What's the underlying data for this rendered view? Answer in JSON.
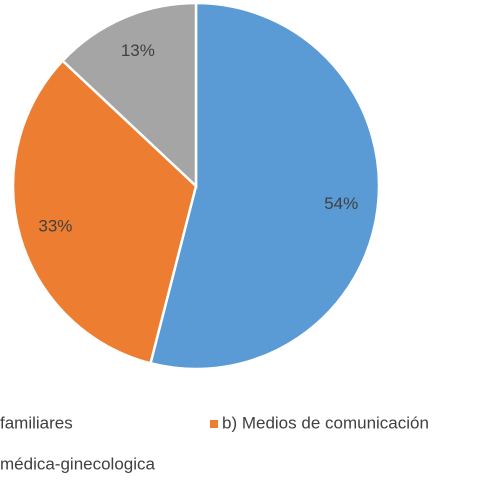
{
  "chart_data": {
    "type": "pie",
    "categories": [
      "familiares",
      "b) Medios de comunicación",
      "médica-ginecologica"
    ],
    "values": [
      54,
      33,
      13
    ],
    "value_labels": [
      "54%",
      "33%",
      "13%"
    ],
    "colors": [
      "#5b9bd5",
      "#ed7d31",
      "#a5a5a5"
    ]
  }
}
